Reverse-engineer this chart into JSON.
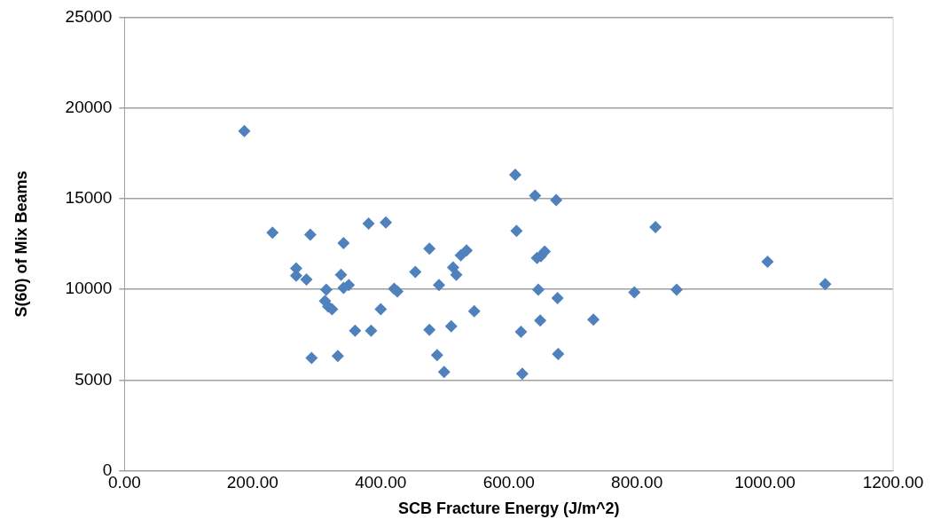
{
  "chart_data": {
    "type": "scatter",
    "xlabel": "SCB Fracture Energy (J/m^2)",
    "ylabel": "S(60) of Mix Beams",
    "marker": "diamond",
    "grid": "y",
    "legend": false,
    "xlim": [
      0,
      1200
    ],
    "xticks": [
      {
        "value": 0,
        "label": "0.00"
      },
      {
        "value": 200,
        "label": "200.00"
      },
      {
        "value": 400,
        "label": "400.00"
      },
      {
        "value": 600,
        "label": "600.00"
      },
      {
        "value": 800,
        "label": "800.00"
      },
      {
        "value": 1000,
        "label": "1000.00"
      },
      {
        "value": 1200,
        "label": "1200.00"
      }
    ],
    "ylim": [
      0,
      25000
    ],
    "yticks": [
      0,
      5000,
      10000,
      15000,
      20000,
      25000
    ],
    "series": [
      {
        "color": "#4f81bd",
        "x": [
          187,
          231,
          268,
          268,
          284,
          290,
          292,
          313,
          315,
          318,
          324,
          333,
          342,
          338,
          342,
          350,
          360,
          381,
          385,
          408,
          400,
          421,
          426,
          454,
          476,
          476,
          491,
          488,
          499,
          510,
          513,
          518,
          525,
          534,
          546,
          612,
          610,
          619,
          621,
          641,
          644,
          650,
          656,
          646,
          649,
          676,
          677,
          674,
          732,
          796,
          829,
          862,
          1004,
          1094
        ],
        "values": [
          18720,
          13120,
          11160,
          10750,
          10540,
          13010,
          6220,
          9360,
          9980,
          9050,
          8900,
          6330,
          12550,
          10800,
          10080,
          10240,
          7720,
          13630,
          7720,
          13680,
          8900,
          10030,
          9880,
          10960,
          12240,
          7770,
          10240,
          6380,
          5450,
          7970,
          11210,
          10800,
          11880,
          12140,
          8800,
          13220,
          16310,
          7660,
          5350,
          15170,
          11730,
          11830,
          12090,
          9980,
          8280,
          9520,
          6430,
          14920,
          8330,
          9830,
          13430,
          9980,
          11520,
          10290
        ]
      }
    ]
  }
}
